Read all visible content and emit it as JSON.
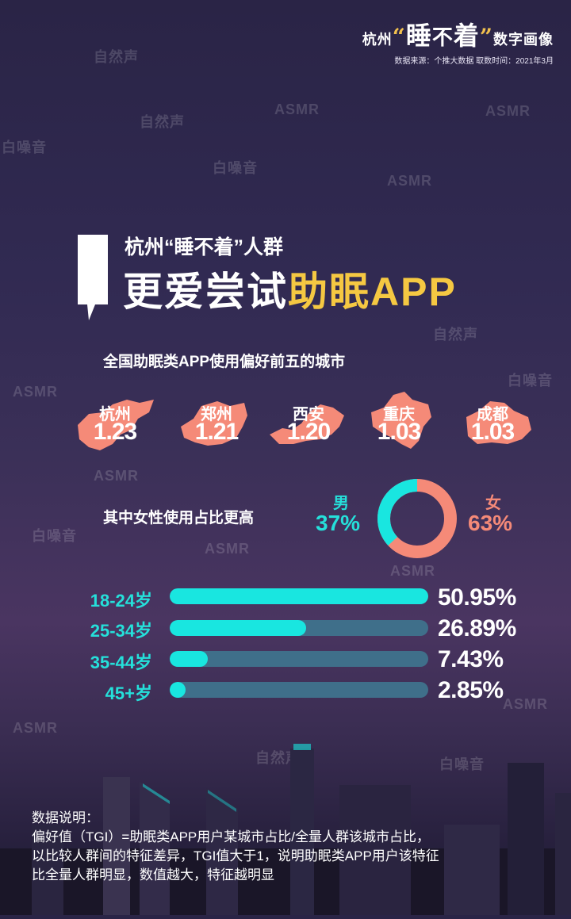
{
  "header": {
    "brand_prefix": "杭州",
    "brand_word1": "睡",
    "brand_word2": "不",
    "brand_word3": "着",
    "brand_suffix": "数字画像",
    "source": "数据来源：个推大数据 取数时间：2021年3月"
  },
  "watermarks": {
    "ziransheng": "自然声",
    "asmr": "ASMR",
    "baizaoyin": "白噪音"
  },
  "title": {
    "line1": "杭州“睡不着”人群",
    "line2_plain": "更爱尝试",
    "line2_highlight": "助眠APP"
  },
  "cities_section": {
    "label": "全国助眠类APP使用偏好前五的城市",
    "cities": [
      {
        "name": "杭州",
        "value": "1.23"
      },
      {
        "name": "郑州",
        "value": "1.21"
      },
      {
        "name": "西安",
        "value": "1.20"
      },
      {
        "name": "重庆",
        "value": "1.03"
      },
      {
        "name": "成都",
        "value": "1.03"
      }
    ]
  },
  "gender": {
    "label": "其中女性使用占比更高",
    "male_label": "男",
    "male_value": "37%",
    "female_label": "女",
    "female_value": "63%",
    "male_share": 37,
    "female_share": 63
  },
  "age_bars": [
    {
      "label": "18-24岁",
      "value": "50.95%",
      "share": 50.95
    },
    {
      "label": "25-34岁",
      "value": "26.89%",
      "share": 26.89
    },
    {
      "label": "35-44岁",
      "value": "7.43%",
      "share": 7.43
    },
    {
      "label": "45+岁",
      "value": "2.85%",
      "share": 2.85
    }
  ],
  "note": {
    "heading": "数据说明：",
    "line1": "偏好值（TGI）=助眠类APP用户某城市占比/全量人群该城市占比，",
    "line2": "以比较人群间的特征差异，TGI值大于1，说明助眠类APP用户该特征",
    "line3": "比全量人群明显，数值越大，特征越明显"
  },
  "colors": {
    "accent_cyan": "#19e6e0",
    "accent_salmon": "#f58a78",
    "highlight_yellow": "#f5c842",
    "track": "#3f6f8a"
  }
}
